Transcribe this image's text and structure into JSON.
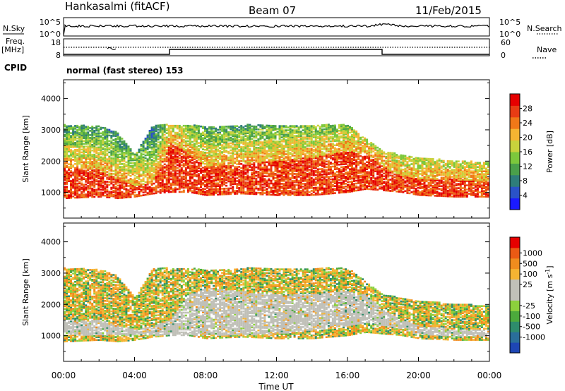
{
  "header": {
    "station": "Hankasalmi (fitACF)",
    "beam": "Beam 07",
    "date": "11/Feb/2015"
  },
  "top_panels": {
    "nsky_label": "N.Sky",
    "nsearch_label": "N.Search",
    "nsky_ticks": [
      "10^5",
      "10^0"
    ],
    "nsearch_ticks": [
      "10^5",
      "10^0"
    ],
    "freq_label_1": "Freq.",
    "freq_label_2": "[MHz]",
    "freq_ticks": [
      "18",
      "8"
    ],
    "nave_label": "Nave",
    "nave_ticks": [
      "60",
      "0"
    ],
    "cpid_label": "CPID",
    "cpid_text": "normal (fast stereo) 153"
  },
  "chart_data": [
    {
      "type": "heatmap",
      "name": "power",
      "ylabel": "Slant Range [km]",
      "ylim": [
        180,
        4600
      ],
      "yticks": [
        1000,
        2000,
        3000,
        4000
      ],
      "xlim": [
        0,
        24
      ],
      "colorbar_label": "Power [dB]",
      "colorbar_range": [
        0,
        32
      ],
      "colorbar_ticks": [
        "4",
        "8",
        "12",
        "16",
        "20",
        "24",
        "28"
      ],
      "colorbar_colors": [
        "#1a1aff",
        "#2a52c8",
        "#2e7d7a",
        "#4aa04a",
        "#7cc83c",
        "#c8d23c",
        "#f5b432",
        "#f07818",
        "#e83c14",
        "#e60000"
      ],
      "echo_band": {
        "hours": [
          0,
          2,
          3,
          4,
          5,
          6,
          7,
          8,
          10,
          12,
          14,
          16,
          17,
          18,
          19,
          20,
          22,
          24
        ],
        "lower_km": [
          800,
          850,
          800,
          850,
          950,
          1000,
          1000,
          900,
          950,
          900,
          900,
          1000,
          1100,
          1050,
          1000,
          900,
          850,
          850
        ],
        "upper_km": [
          3150,
          3100,
          2900,
          2200,
          3150,
          3150,
          3150,
          3100,
          3150,
          3150,
          3150,
          3150,
          2700,
          2300,
          2200,
          2100,
          2000,
          1950
        ],
        "strong_upper_km": [
          1800,
          1700,
          1400,
          1200,
          1300,
          2600,
          2200,
          1800,
          1900,
          2000,
          2100,
          2300,
          2200,
          1800,
          1500,
          1400,
          1400,
          1300
        ]
      }
    },
    {
      "type": "heatmap",
      "name": "velocity",
      "ylabel": "Slant Range [km]",
      "ylim": [
        180,
        4600
      ],
      "yticks": [
        1000,
        2000,
        3000,
        4000
      ],
      "xlim": [
        0,
        24
      ],
      "xticks": [
        "00:00",
        "04:00",
        "08:00",
        "12:00",
        "16:00",
        "20:00",
        "00:00"
      ],
      "xlabel": "Time UT",
      "colorbar_label": "Velocity [m s",
      "colorbar_label_sup": "-1",
      "colorbar_label_end": "]",
      "colorbar_ticks": [
        "1000",
        "500",
        "100",
        "25",
        "-25",
        "-100",
        "-500",
        "-1000"
      ],
      "colorbar_colors": [
        "#1e46b4",
        "#2a6e9a",
        "#2e8c6c",
        "#4caa3c",
        "#8cd03c",
        "#c0c0b8",
        "#c0c0b8",
        "#f5b432",
        "#f08c1e",
        "#eb5a14",
        "#e60000"
      ],
      "echo_band": {
        "hours": [
          0,
          2,
          3,
          4,
          5,
          6,
          7,
          8,
          10,
          12,
          14,
          16,
          17,
          18,
          19,
          20,
          22,
          24
        ],
        "lower_km": [
          800,
          850,
          800,
          850,
          950,
          1000,
          1000,
          900,
          950,
          900,
          900,
          1000,
          1100,
          1050,
          1000,
          900,
          850,
          850
        ],
        "upper_km": [
          3150,
          3100,
          2900,
          2200,
          3150,
          3150,
          3150,
          3100,
          3150,
          3150,
          3150,
          3150,
          2700,
          2300,
          2200,
          2100,
          2000,
          1950
        ],
        "gray_lower_km": [
          1000,
          1000,
          1000,
          1000,
          1000,
          1000,
          1000,
          1000,
          1000,
          1050,
          1150,
          1300,
          1400,
          1300,
          1200,
          1000,
          950,
          950
        ],
        "gray_upper_km": [
          1500,
          1500,
          1300,
          1200,
          1300,
          1500,
          2300,
          2500,
          2400,
          2300,
          2300,
          2400,
          2300,
          1800,
          1500,
          1300,
          1200,
          1200
        ]
      }
    }
  ]
}
